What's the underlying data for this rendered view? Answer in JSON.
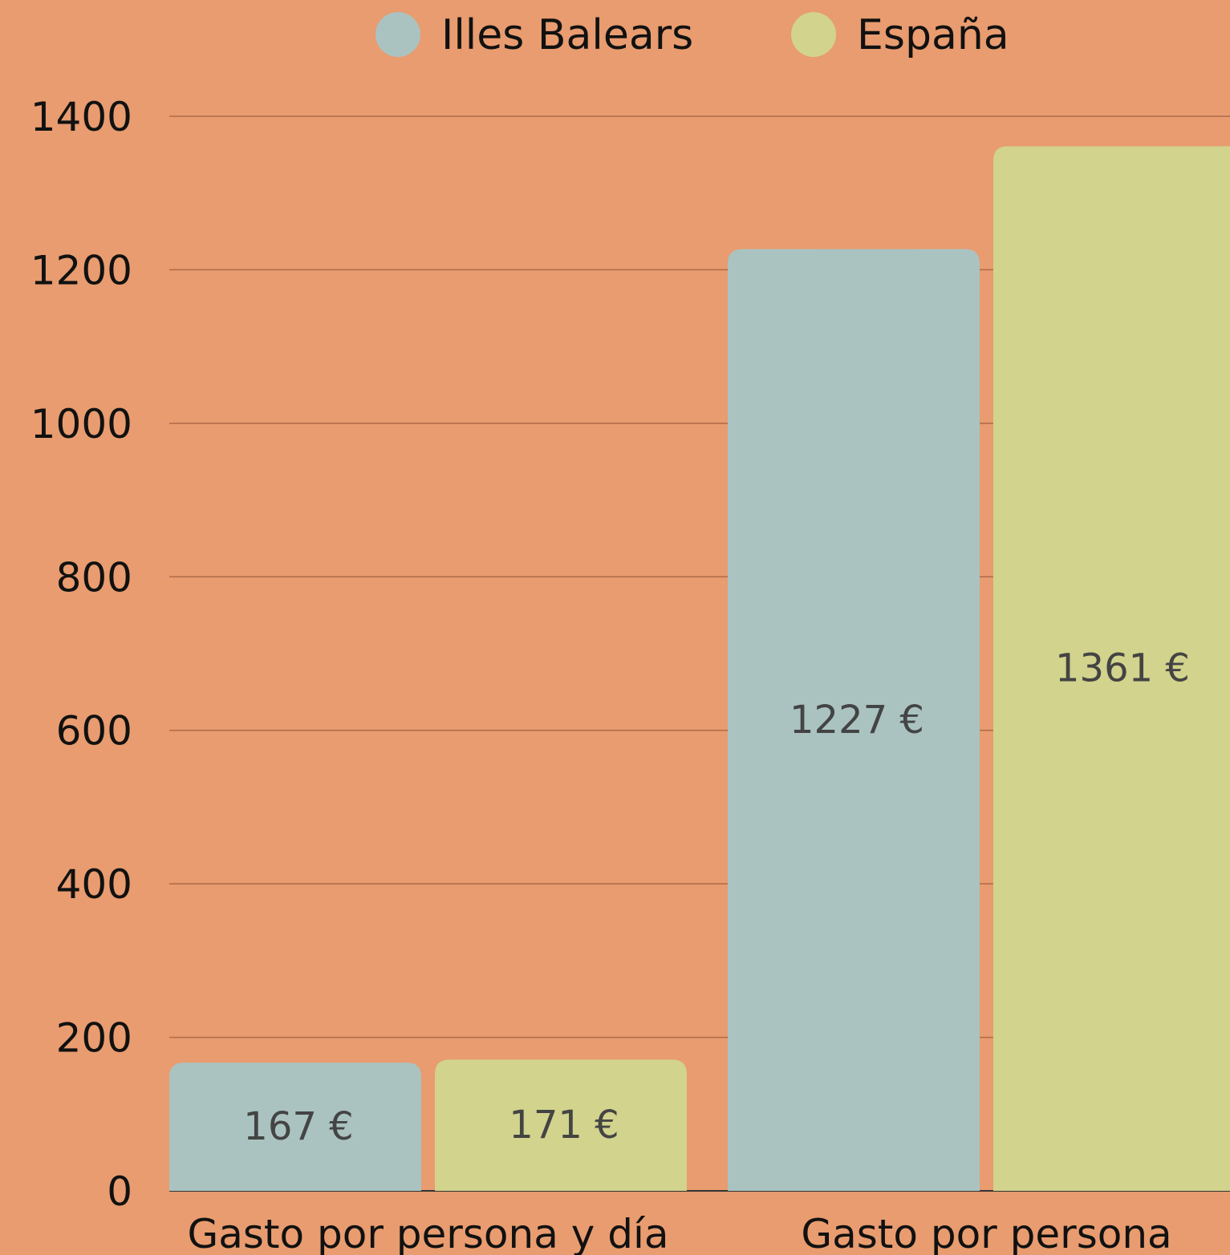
{
  "chart_data": {
    "type": "bar",
    "categories": [
      "Gasto por persona y día",
      "Gasto por persona"
    ],
    "series": [
      {
        "name": "Illes Balears",
        "color": "#aac3c1",
        "values": [
          167,
          1227
        ],
        "value_labels": [
          "167 €",
          "1227 €"
        ]
      },
      {
        "name": "España",
        "color": "#d2d38c",
        "values": [
          171,
          1361
        ],
        "value_labels": [
          "171 €",
          "1361 €"
        ]
      }
    ],
    "ylim": [
      0,
      1400
    ],
    "yticks": [
      0,
      200,
      400,
      600,
      800,
      1000,
      1200,
      1400
    ],
    "grid": true
  }
}
